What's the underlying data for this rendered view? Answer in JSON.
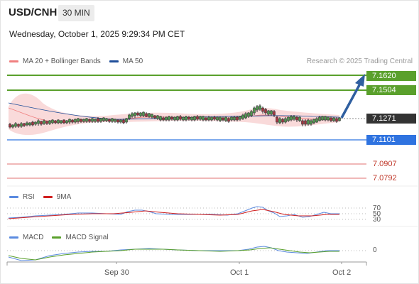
{
  "header": {
    "symbol": "USD/CNH",
    "timeframe": "30 MIN",
    "datetime": "Wednesday, October 1, 2025 9:29:34 PM CET"
  },
  "legend": {
    "ma20_label": "MA 20 + Bollinger Bands",
    "ma50_label": "MA 50",
    "credit": "Research © 2025 Trading Central",
    "rsi_label": "RSI",
    "rsi_ma_label": "9MA",
    "macd_label": "MACD",
    "macd_signal_label": "MACD Signal"
  },
  "levels": {
    "r2": "7.1620",
    "r1": "7.1504",
    "last": "7.1271",
    "s1": "7.1101",
    "s2": "7.0907",
    "s3": "7.0792"
  },
  "osc_axis": {
    "rsi_70": "70",
    "rsi_50": "50",
    "rsi_30": "30",
    "macd_0": "0"
  },
  "x_axis": {
    "labels": [
      "Sep 30",
      "Oct 1",
      "Oct 2"
    ]
  },
  "colors": {
    "resistance": "#5aa02c",
    "support": "#2f73e0",
    "last_price": "#333333",
    "weak_level": "#e07070",
    "bollinger": "#f8d4d4",
    "ma20": "#f08080",
    "ma50": "#1f4e9a",
    "rsi": "#5b8be0",
    "rsi_ma": "#d02020",
    "macd": "#5b8be0",
    "macd_signal": "#5aa02c",
    "arrow": "#2f5fa0"
  }
}
